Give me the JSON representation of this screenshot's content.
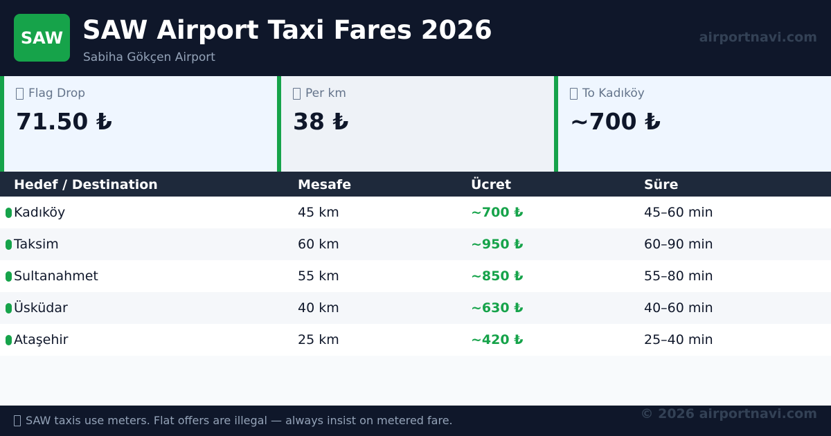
{
  "header": {
    "logo_text": "SAW",
    "title": "SAW Airport Taxi Fares 2026",
    "subtitle": "Sabiha Gökçen Airport",
    "site": "airportnavi.com"
  },
  "cards": [
    {
      "label": "Flag Drop",
      "value": "71.50 ₺",
      "icon": "missing-glyph-icon"
    },
    {
      "label": "Per km",
      "value": "38 ₺",
      "icon": "missing-glyph-icon"
    },
    {
      "label": "To Kadıköy",
      "value": "~700 ₺",
      "icon": "missing-glyph-icon"
    }
  ],
  "table": {
    "headers": [
      "Hedef / Destination",
      "Mesafe",
      "Ücret",
      "Süre"
    ],
    "rows": [
      {
        "destination": "Kadıköy",
        "distance": "45 km",
        "fare": "~700 ₺",
        "duration": "45–60 min"
      },
      {
        "destination": "Taksim",
        "distance": "60 km",
        "fare": "~950 ₺",
        "duration": "60–90 min"
      },
      {
        "destination": "Sultanahmet",
        "distance": "55 km",
        "fare": "~850 ₺",
        "duration": "55–80 min"
      },
      {
        "destination": "Üsküdar",
        "distance": "40 km",
        "fare": "~630 ₺",
        "duration": "40–60 min"
      },
      {
        "destination": "Ataşehir",
        "distance": "25 km",
        "fare": "~420 ₺",
        "duration": "25–40 min"
      }
    ]
  },
  "footer": {
    "note": "SAW taxis use meters. Flat offers are illegal — always insist on metered fare.",
    "copyright": "© 2026 airportnavi.com"
  },
  "colors": {
    "brand_green": "#16a34a",
    "header_bg": "#0f172a",
    "table_head_bg": "#1e293b"
  }
}
